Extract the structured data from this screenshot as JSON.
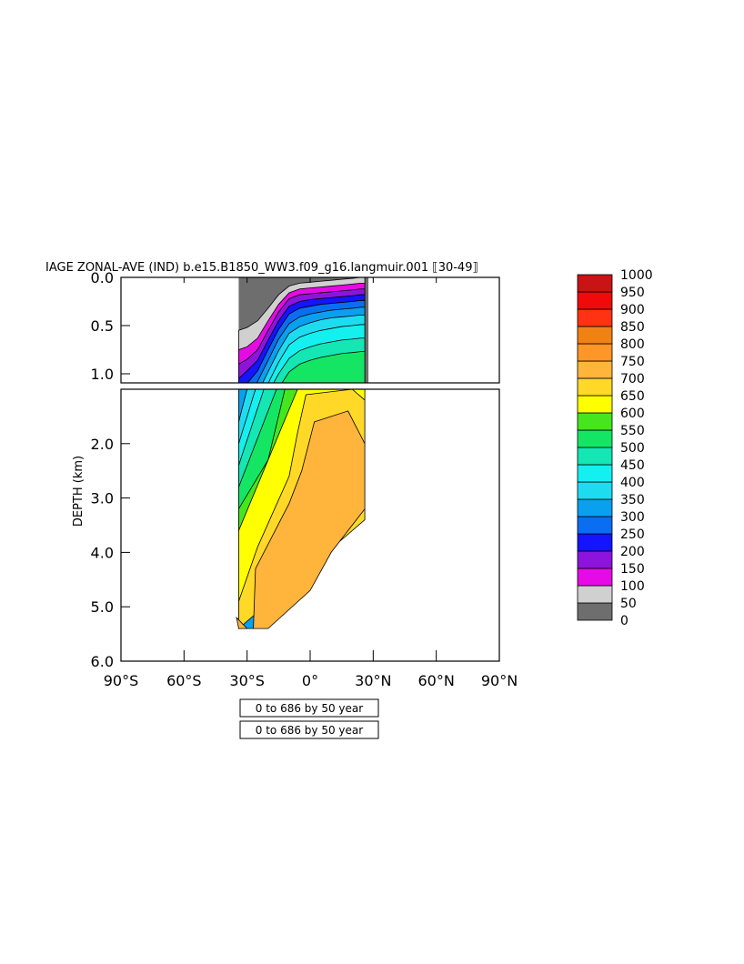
{
  "chart_data": {
    "type": "heatmap",
    "title": "IAGE ZONAL-AVE (IND) b.e15.B1850_WW3.f09_g16.langmuir.001 ⟦30-49⟧",
    "ylabel": "DEPTH (km)",
    "xlabel": "",
    "x_ticks": [
      "90°S",
      "60°S",
      "30°S",
      "0°",
      "30°N",
      "60°N",
      "90°N"
    ],
    "xlim": [
      -90,
      90
    ],
    "upper_panel": {
      "ylim": [
        0.0,
        1.0
      ],
      "y_ticks": [
        "0.0",
        "0.5",
        "1.0"
      ]
    },
    "lower_panel": {
      "ylim": [
        1.0,
        6.0
      ],
      "y_ticks": [
        "2.0",
        "3.0",
        "4.0",
        "5.0",
        "6.0"
      ]
    },
    "colorbar": {
      "levels": [
        "0",
        "50",
        "100",
        "150",
        "200",
        "250",
        "300",
        "350",
        "400",
        "450",
        "500",
        "550",
        "600",
        "650",
        "700",
        "750",
        "800",
        "850",
        "900",
        "950",
        "1000"
      ],
      "colors": [
        "#6e6e6e",
        "#d0d0d0",
        "#e60ae6",
        "#8c14dc",
        "#1414ff",
        "#0a6ef0",
        "#0aa0f0",
        "#1edcf0",
        "#14f0f0",
        "#14e6b4",
        "#14e664",
        "#46e61e",
        "#ffff00",
        "#ffd828",
        "#ffb43c",
        "#ff9628",
        "#f08214",
        "#ff3214",
        "#f00a0a",
        "#c81414"
      ]
    },
    "note_labels": [
      "0 to 686 by 50 year",
      "0 to 686 by 50 year"
    ],
    "data_extent": {
      "lat_min": -34,
      "lat_max": 26,
      "max_depth_km": 5.4
    },
    "upper_profile": {
      "lat": [
        -34,
        -30,
        -25,
        -20,
        -15,
        -10,
        -5,
        0,
        5,
        10,
        15,
        20,
        24,
        26
      ],
      "depth_of_value": {
        "50": [
          0.55,
          0.52,
          0.45,
          0.32,
          0.18,
          0.09,
          0.06,
          0.05,
          0.04,
          0.03,
          0.02,
          0.01,
          0.0,
          0.0
        ],
        "100": [
          0.75,
          0.72,
          0.63,
          0.45,
          0.28,
          0.16,
          0.12,
          0.11,
          0.1,
          0.09,
          0.08,
          0.07,
          0.06,
          0.06
        ],
        "150": [
          0.9,
          0.85,
          0.75,
          0.55,
          0.36,
          0.22,
          0.18,
          0.17,
          0.16,
          0.15,
          0.14,
          0.13,
          0.12,
          0.12
        ],
        "200": [
          1.05,
          0.97,
          0.86,
          0.65,
          0.45,
          0.3,
          0.25,
          0.23,
          0.22,
          0.21,
          0.2,
          0.19,
          0.18,
          0.18
        ],
        "250": [
          1.2,
          1.1,
          0.97,
          0.75,
          0.54,
          0.38,
          0.32,
          0.3,
          0.28,
          0.27,
          0.26,
          0.25,
          0.24,
          0.24
        ],
        "300": [
          1.3,
          1.22,
          1.08,
          0.86,
          0.64,
          0.48,
          0.41,
          0.38,
          0.36,
          0.34,
          0.33,
          0.32,
          0.31,
          0.31
        ],
        "350": [
          1.4,
          1.35,
          1.2,
          0.98,
          0.76,
          0.58,
          0.51,
          0.47,
          0.44,
          0.42,
          0.41,
          0.4,
          0.39,
          0.39
        ],
        "400": [
          1.5,
          1.45,
          1.32,
          1.1,
          0.88,
          0.7,
          0.62,
          0.58,
          0.55,
          0.53,
          0.51,
          0.5,
          0.49,
          0.49
        ],
        "450": [
          1.6,
          1.55,
          1.45,
          1.22,
          1.0,
          0.84,
          0.76,
          0.72,
          0.69,
          0.67,
          0.65,
          0.64,
          0.63,
          0.63
        ],
        "500": [
          1.7,
          1.65,
          1.55,
          1.35,
          1.15,
          0.98,
          0.9,
          0.86,
          0.83,
          0.81,
          0.79,
          0.78,
          0.77,
          0.77
        ]
      }
    }
  }
}
